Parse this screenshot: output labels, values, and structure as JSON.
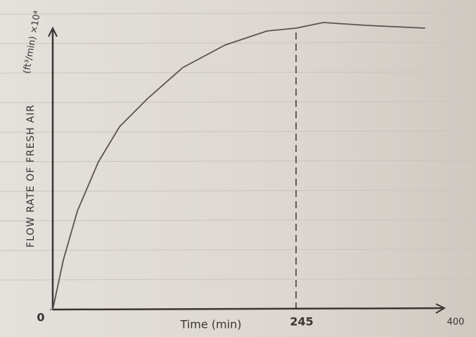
{
  "chart_data": {
    "type": "line",
    "y_label": "FLOW RATE OF FRESH AIR",
    "y_units": "(ft³/min) ×10⁴",
    "x_label": "Time (min)",
    "x": [
      0,
      10.6,
      24.8,
      46,
      67.3,
      95.6,
      131,
      173.5,
      215.9,
      245,
      272.6,
      315,
      375
    ],
    "series": [
      {
        "color": "#5a5352",
        "values": [
          0,
          17.5,
          35,
          52.5,
          65,
          75,
          86,
          94,
          99,
          100,
          102,
          101,
          100
        ]
      }
    ],
    "xlim": [
      0,
      400
    ],
    "xticks": [
      0,
      245,
      400
    ],
    "ylim": [
      0,
      100
    ],
    "yticks": [
      0
    ]
  }
}
